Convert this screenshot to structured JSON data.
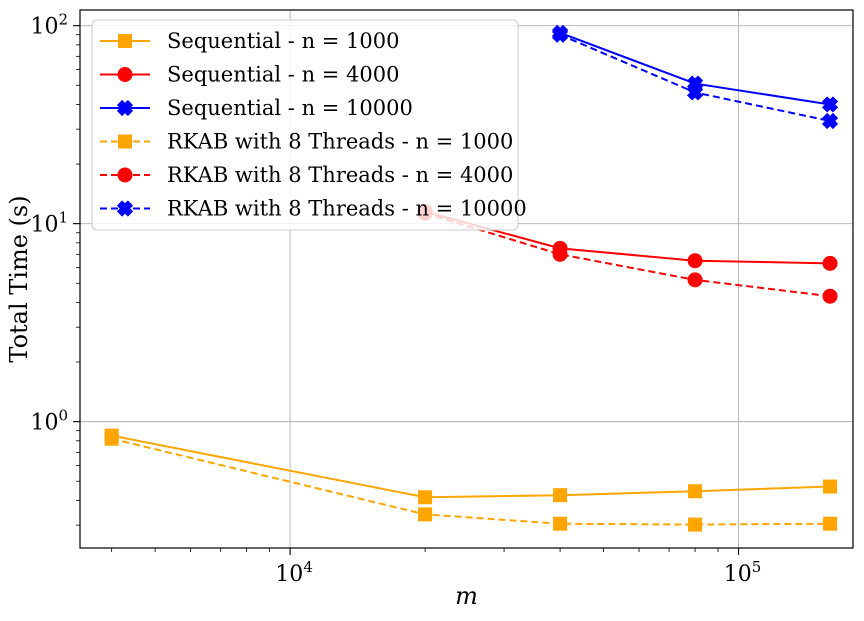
{
  "chart_data": {
    "type": "line",
    "title": "",
    "xlabel": "m",
    "ylabel": "Total Time (s)",
    "xscale": "log",
    "yscale": "log",
    "xlim": [
      3400,
      180000
    ],
    "ylim": [
      0.23,
      120
    ],
    "grid": true,
    "legend_position": "upper-left",
    "x_tick_labels": [
      "10^4",
      "10^5"
    ],
    "y_tick_labels": [
      "10^0",
      "10^1",
      "10^2"
    ],
    "series": [
      {
        "name": "Sequential - n = 1000",
        "color": "#FFA500",
        "linestyle": "solid",
        "marker": "square",
        "x": [
          4000,
          20000,
          40000,
          80000,
          160000
        ],
        "y": [
          0.85,
          0.415,
          0.425,
          0.445,
          0.47
        ]
      },
      {
        "name": "Sequential - n = 4000",
        "color": "#FF0000",
        "linestyle": "solid",
        "marker": "circle",
        "x": [
          20000,
          40000,
          80000,
          160000
        ],
        "y": [
          11.5,
          7.5,
          6.5,
          6.3
        ]
      },
      {
        "name": "Sequential - n = 10000",
        "color": "#0000FF",
        "linestyle": "solid",
        "marker": "x",
        "x": [
          40000,
          80000,
          160000
        ],
        "y": [
          92,
          51,
          40
        ]
      },
      {
        "name": "RKAB with 8 Threads - n = 1000",
        "color": "#FFA500",
        "linestyle": "dashed",
        "marker": "square",
        "x": [
          4000,
          20000,
          40000,
          80000,
          160000
        ],
        "y": [
          0.82,
          0.34,
          0.305,
          0.302,
          0.305
        ]
      },
      {
        "name": "RKAB with 8 Threads - n = 4000",
        "color": "#FF0000",
        "linestyle": "dashed",
        "marker": "circle",
        "x": [
          20000,
          40000,
          80000,
          160000
        ],
        "y": [
          11.3,
          7.0,
          5.2,
          4.3
        ]
      },
      {
        "name": "RKAB with 8 Threads - n = 10000",
        "color": "#0000FF",
        "linestyle": "dashed",
        "marker": "x",
        "x": [
          40000,
          80000,
          160000
        ],
        "y": [
          90,
          46,
          33
        ]
      }
    ]
  }
}
